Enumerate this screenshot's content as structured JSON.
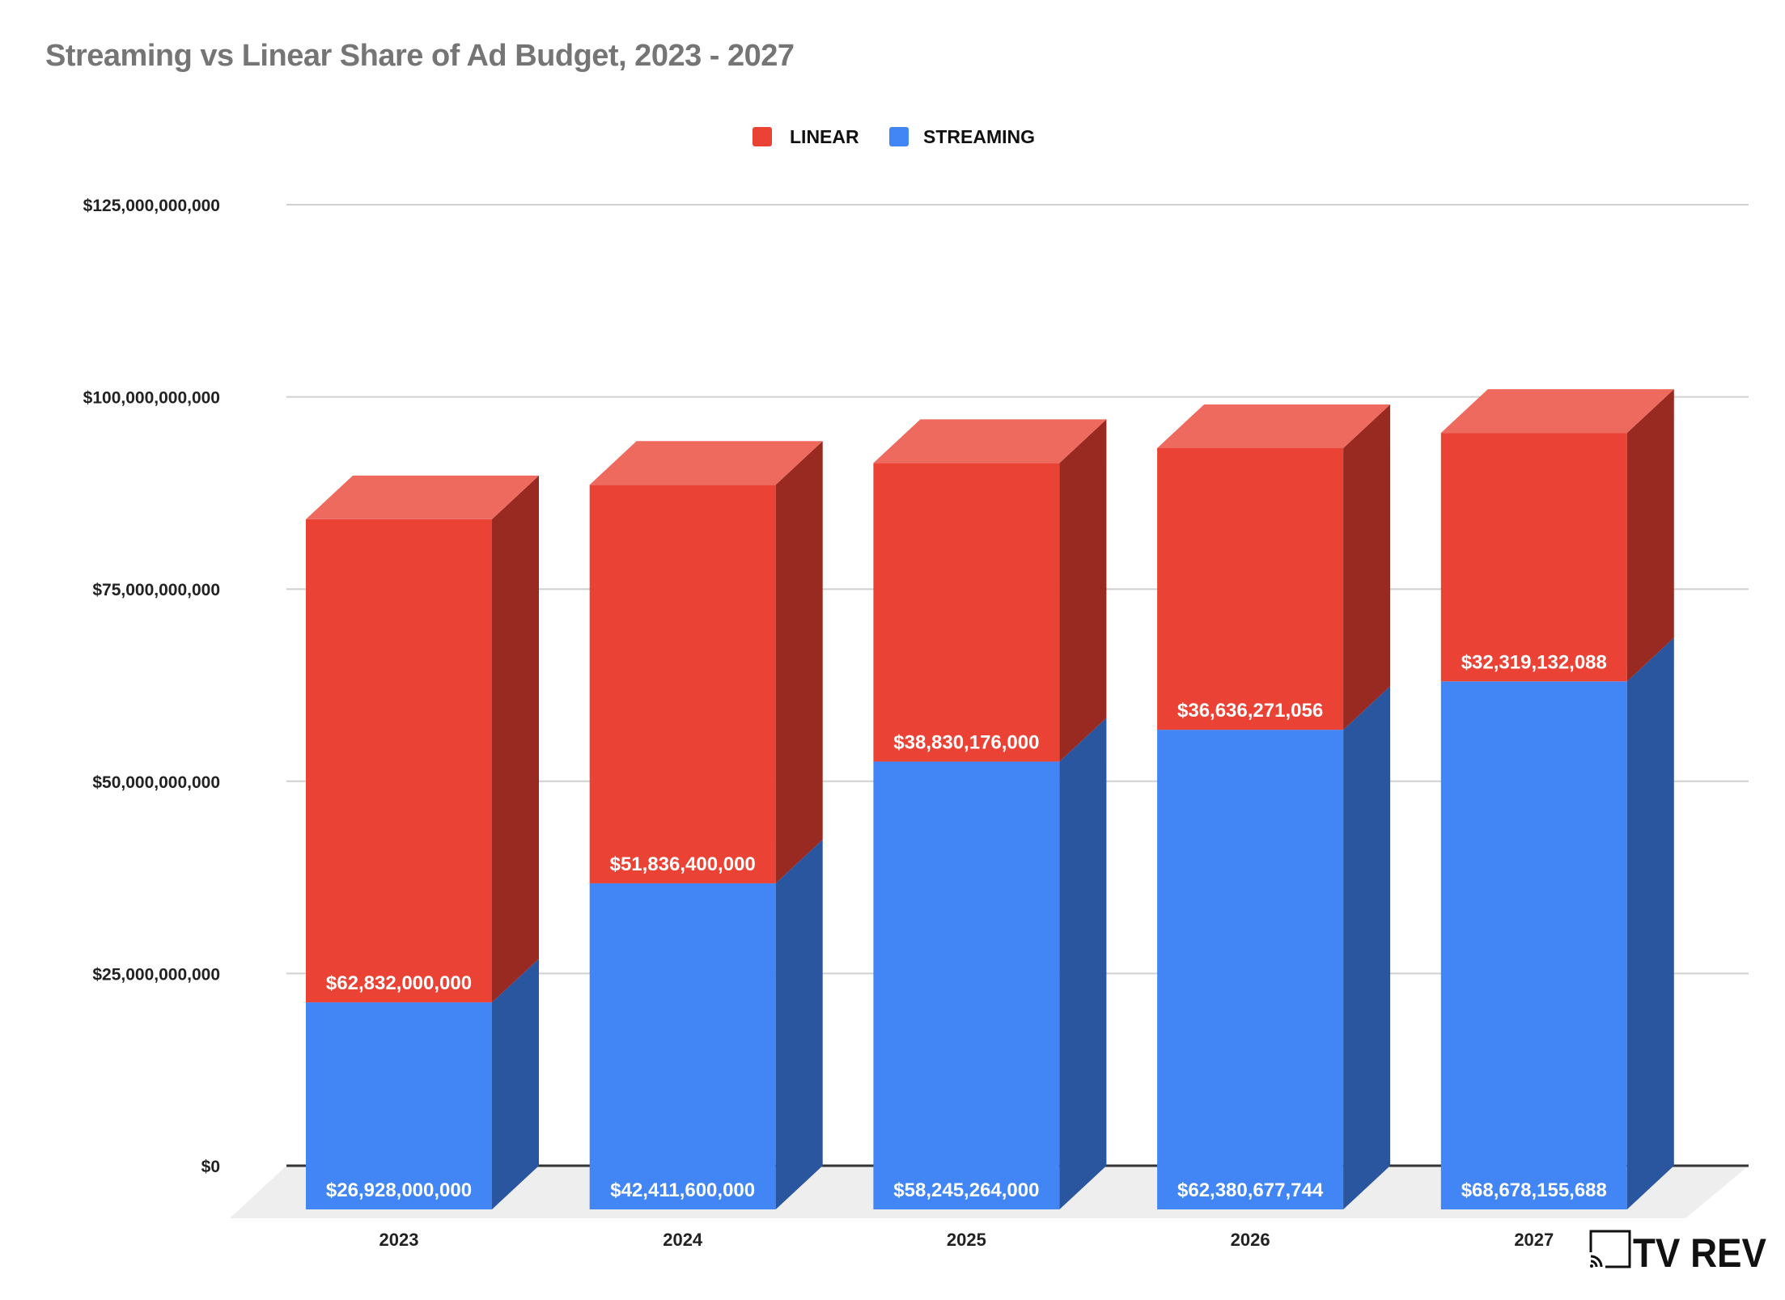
{
  "chart_data": {
    "type": "bar",
    "stacked": true,
    "three_d": true,
    "title": "Streaming vs Linear Share of Ad Budget, 2023 - 2027",
    "xlabel": "",
    "ylabel": "",
    "categories": [
      "2023",
      "2024",
      "2025",
      "2026",
      "2027"
    ],
    "series": [
      {
        "name": "STREAMING",
        "color": "#4285F4",
        "side_color": "#2A56A0",
        "top_color": "#6A9EF6",
        "values": [
          26928000000,
          42411600000,
          58245264000,
          62380677744,
          68678155688
        ],
        "labels": [
          "$26,928,000,000",
          "$42,411,600,000",
          "$58,245,264,000",
          "$62,380,677,744",
          "$68,678,155,688"
        ]
      },
      {
        "name": "LINEAR",
        "color": "#EA4335",
        "side_color": "#982A22",
        "top_color": "#EE6A5E",
        "values": [
          62832000000,
          51836400000,
          38830176000,
          36636271056,
          32319132088
        ],
        "labels": [
          "$62,832,000,000",
          "$51,836,400,000",
          "$38,830,176,000",
          "$36,636,271,056",
          "$32,319,132,088"
        ]
      }
    ],
    "legend": {
      "placement": "top-center",
      "order": [
        "LINEAR",
        "STREAMING"
      ]
    },
    "ylim": [
      0,
      125000000000
    ],
    "yticks": [
      0,
      25000000000,
      50000000000,
      75000000000,
      100000000000,
      125000000000
    ],
    "ytick_labels": [
      "$0",
      "$25,000,000,000",
      "$50,000,000,000",
      "$75,000,000,000",
      "$100,000,000,000",
      "$125,000,000,000"
    ],
    "grid": true
  },
  "logo": {
    "text": "TV REV"
  }
}
